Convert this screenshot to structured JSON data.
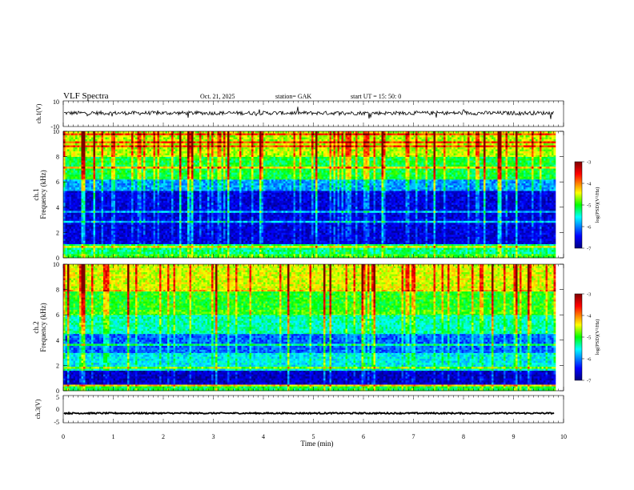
{
  "header": {
    "title": "VLF Spectra",
    "date": "Oct. 21, 2025",
    "station": "station= GAK",
    "start_ut": "start UT = 15: 50: 0"
  },
  "chart_data": [
    {
      "type": "line",
      "panel": "ch1-waveform",
      "ylabel": "ch.1(V)",
      "ylim": [
        -10,
        10
      ],
      "ytick_labels": [
        "10",
        "-10"
      ],
      "baseline": 0.5,
      "noise_amplitude": 1.5,
      "spike_amplitude": 4
    },
    {
      "type": "heatmap",
      "panel": "ch1-spectrogram",
      "ylabel": "ch.1\nFrequency (kHz)",
      "ylim": [
        0,
        10
      ],
      "yticks": [
        0,
        2,
        4,
        6,
        8,
        10
      ],
      "colorbar": {
        "label": "log(PSD)(V²/Hz)",
        "range": [
          -7,
          -3
        ],
        "ticks": [
          "-3",
          "-4",
          "-5",
          "-6",
          "-7"
        ]
      },
      "bands": [
        {
          "f": [
            0.0,
            0.3
          ],
          "log_psd": -5.0
        },
        {
          "f": [
            0.3,
            1.1
          ],
          "log_psd": -5.3
        },
        {
          "f": [
            1.1,
            5.3
          ],
          "log_psd": -6.6
        },
        {
          "f": [
            5.3,
            6.2
          ],
          "log_psd": -5.9
        },
        {
          "f": [
            6.2,
            8.0
          ],
          "log_psd": -5.1
        },
        {
          "f": [
            8.0,
            10.0
          ],
          "log_psd": -4.6
        }
      ]
    },
    {
      "type": "heatmap",
      "panel": "ch2-spectrogram",
      "ylabel": "ch.2\nFrequency (kHz)",
      "ylim": [
        0,
        10
      ],
      "yticks": [
        0,
        2,
        4,
        6,
        8,
        10
      ],
      "colorbar": {
        "label": "log(PSD)(V²/Hz)",
        "range": [
          -7,
          -3
        ],
        "ticks": [
          "-3",
          "-4",
          "-5",
          "-6",
          "-7"
        ]
      },
      "bands": [
        {
          "f": [
            0.0,
            0.5
          ],
          "log_psd": -5.1
        },
        {
          "f": [
            0.5,
            1.6
          ],
          "log_psd": -6.7
        },
        {
          "f": [
            1.6,
            3.0
          ],
          "log_psd": -5.6
        },
        {
          "f": [
            3.0,
            4.5
          ],
          "log_psd": -6.1
        },
        {
          "f": [
            4.5,
            6.0
          ],
          "log_psd": -5.4
        },
        {
          "f": [
            6.0,
            6.4
          ],
          "log_psd": -4.9
        },
        {
          "f": [
            6.4,
            8.0
          ],
          "log_psd": -5.0
        },
        {
          "f": [
            8.0,
            10.0
          ],
          "log_psd": -4.5
        }
      ]
    },
    {
      "type": "line",
      "panel": "ch3-waveform",
      "ylabel": "ch.3(V)",
      "ylim": [
        -5,
        5
      ],
      "yticks": [
        -5,
        0,
        5
      ],
      "ytick_labels": [
        "5",
        "0",
        "-5"
      ],
      "baseline": -1.5
    }
  ],
  "x_axis": {
    "label": "Time (min)",
    "range": [
      0,
      10
    ],
    "ticks": [
      "0",
      "1",
      "2",
      "3",
      "4",
      "5",
      "6",
      "7",
      "8",
      "9",
      "10"
    ],
    "data_end": 9.82
  },
  "colors": {
    "blue_dark": "#00007f",
    "blue": "#0000ff",
    "cyan": "#00ffff",
    "green": "#00ff00",
    "yellow": "#ffff00",
    "red": "#ff0000",
    "dark_red": "#7f0000"
  }
}
